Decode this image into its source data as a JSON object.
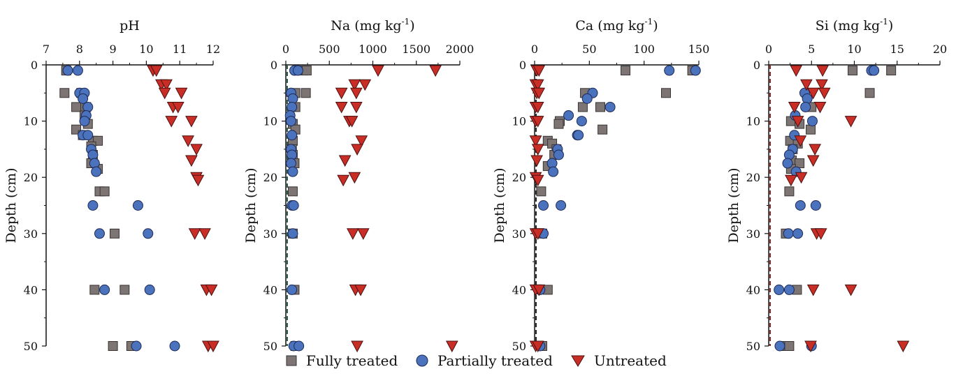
{
  "chart_data": [
    {
      "type": "scatter",
      "title": "pH",
      "ylabel": "Depth (cm)",
      "xlim": [
        7,
        12
      ],
      "xticks": [
        7,
        8,
        9,
        10,
        11,
        12
      ],
      "ylim": [
        0,
        50
      ],
      "yticks": [
        0,
        10,
        20,
        30,
        40,
        50
      ],
      "reference_line": null,
      "series": [
        {
          "name": "Fully treated",
          "points": [
            [
              7.6,
              1
            ],
            [
              7.55,
              5
            ],
            [
              8.05,
              5
            ],
            [
              7.9,
              7.5
            ],
            [
              8.2,
              7.5
            ],
            [
              8.15,
              9
            ],
            [
              8.25,
              10.5
            ],
            [
              7.9,
              11.5
            ],
            [
              8.1,
              12.5
            ],
            [
              8.4,
              13.5
            ],
            [
              8.55,
              13.5
            ],
            [
              8.35,
              14.5
            ],
            [
              8.4,
              16
            ],
            [
              8.35,
              17.5
            ],
            [
              8.55,
              18.5
            ],
            [
              8.6,
              22.5
            ],
            [
              8.75,
              22.5
            ],
            [
              9.05,
              30
            ],
            [
              8.45,
              40
            ],
            [
              9.35,
              40
            ],
            [
              9.0,
              50
            ],
            [
              9.55,
              50
            ]
          ]
        },
        {
          "name": "Partially treated",
          "points": [
            [
              7.65,
              1
            ],
            [
              7.95,
              1
            ],
            [
              8.0,
              5
            ],
            [
              8.15,
              5
            ],
            [
              8.1,
              6
            ],
            [
              8.25,
              7.5
            ],
            [
              8.2,
              9
            ],
            [
              8.15,
              10
            ],
            [
              8.1,
              12.5
            ],
            [
              8.25,
              12.5
            ],
            [
              8.35,
              15
            ],
            [
              8.4,
              16
            ],
            [
              8.45,
              17.5
            ],
            [
              8.5,
              19
            ],
            [
              8.4,
              25
            ],
            [
              9.75,
              25
            ],
            [
              8.6,
              30
            ],
            [
              10.05,
              30
            ],
            [
              8.75,
              40
            ],
            [
              10.1,
              40
            ],
            [
              9.7,
              50
            ],
            [
              10.85,
              50
            ]
          ]
        },
        {
          "name": "Untreated",
          "points": [
            [
              10.2,
              1
            ],
            [
              10.3,
              1
            ],
            [
              10.45,
              3.5
            ],
            [
              10.6,
              3.5
            ],
            [
              10.55,
              5
            ],
            [
              11.05,
              5
            ],
            [
              10.8,
              7.5
            ],
            [
              10.95,
              7.5
            ],
            [
              10.75,
              10
            ],
            [
              11.35,
              10
            ],
            [
              11.25,
              13.5
            ],
            [
              11.5,
              15
            ],
            [
              11.35,
              17
            ],
            [
              11.5,
              20
            ],
            [
              11.55,
              20.5
            ],
            [
              11.45,
              30
            ],
            [
              11.75,
              30
            ],
            [
              11.8,
              40
            ],
            [
              11.95,
              40
            ],
            [
              11.85,
              50
            ],
            [
              12.0,
              50
            ]
          ]
        }
      ]
    },
    {
      "type": "scatter",
      "title": "Na (mg kg",
      "title_sup": "-1",
      "title_end": ")",
      "ylabel": "Depth (cm)",
      "xlim": [
        0,
        2000
      ],
      "xticks": [
        0,
        500,
        1000,
        1500,
        2000
      ],
      "ylim": [
        0,
        50
      ],
      "yticks": [
        0,
        10,
        20,
        30,
        40,
        50
      ],
      "reference_line": {
        "x": 0,
        "color": "#2e5e4e"
      },
      "series": [
        {
          "name": "Fully treated",
          "points": [
            [
              200,
              1
            ],
            [
              240,
              1
            ],
            [
              110,
              5
            ],
            [
              230,
              5
            ],
            [
              110,
              7.5
            ],
            [
              80,
              10.5
            ],
            [
              110,
              11.5
            ],
            [
              80,
              13.5
            ],
            [
              70,
              15
            ],
            [
              80,
              16
            ],
            [
              100,
              17.5
            ],
            [
              80,
              22.5
            ],
            [
              80,
              30
            ],
            [
              100,
              40
            ],
            [
              110,
              50
            ]
          ]
        },
        {
          "name": "Partially treated",
          "points": [
            [
              100,
              1
            ],
            [
              140,
              1
            ],
            [
              60,
              5
            ],
            [
              80,
              6
            ],
            [
              70,
              7.5
            ],
            [
              50,
              9
            ],
            [
              60,
              10
            ],
            [
              70,
              12.5
            ],
            [
              60,
              15
            ],
            [
              70,
              16
            ],
            [
              60,
              17.5
            ],
            [
              80,
              19
            ],
            [
              70,
              25
            ],
            [
              90,
              25
            ],
            [
              80,
              30
            ],
            [
              70,
              40
            ],
            [
              90,
              50
            ],
            [
              150,
              50
            ]
          ]
        },
        {
          "name": "Untreated",
          "points": [
            [
              1060,
              1
            ],
            [
              1720,
              1
            ],
            [
              790,
              3.5
            ],
            [
              910,
              3.5
            ],
            [
              640,
              5
            ],
            [
              810,
              5
            ],
            [
              640,
              7.5
            ],
            [
              810,
              7.5
            ],
            [
              730,
              10
            ],
            [
              760,
              10
            ],
            [
              870,
              13.5
            ],
            [
              820,
              15
            ],
            [
              680,
              17
            ],
            [
              790,
              20
            ],
            [
              660,
              20.5
            ],
            [
              770,
              30
            ],
            [
              890,
              30
            ],
            [
              800,
              40
            ],
            [
              860,
              40
            ],
            [
              820,
              50
            ],
            [
              1910,
              50
            ]
          ]
        }
      ]
    },
    {
      "type": "scatter",
      "title": "Ca (mg kg",
      "title_sup": "-1",
      "title_end": ")",
      "ylabel": "Depth (cm)",
      "xlim": [
        0,
        150
      ],
      "xticks": [
        0,
        50,
        100,
        150
      ],
      "ylim": [
        0,
        50
      ],
      "yticks": [
        0,
        10,
        20,
        30,
        40,
        50
      ],
      "reference_line": {
        "x": 0,
        "color": "#222222"
      },
      "series": [
        {
          "name": "Fully treated",
          "points": [
            [
              83,
              1
            ],
            [
              144,
              1
            ],
            [
              120,
              5
            ],
            [
              46,
              5
            ],
            [
              60,
              7.5
            ],
            [
              44,
              7.5
            ],
            [
              23,
              10
            ],
            [
              22,
              10.5
            ],
            [
              62,
              11.5
            ],
            [
              12,
              13.5
            ],
            [
              16,
              14
            ],
            [
              20,
              15
            ],
            [
              18,
              16
            ],
            [
              12,
              18
            ],
            [
              6,
              22.5
            ],
            [
              7,
              30
            ],
            [
              12,
              40
            ],
            [
              7,
              50
            ]
          ]
        },
        {
          "name": "Partially treated",
          "points": [
            [
              123,
              1
            ],
            [
              147,
              1
            ],
            [
              53,
              5
            ],
            [
              48,
              6
            ],
            [
              69,
              7.5
            ],
            [
              31,
              9
            ],
            [
              43,
              10
            ],
            [
              39,
              12.5
            ],
            [
              40,
              12.5
            ],
            [
              21,
              15
            ],
            [
              22,
              16
            ],
            [
              16,
              17.5
            ],
            [
              17,
              19
            ],
            [
              8,
              25
            ],
            [
              24,
              25
            ],
            [
              8,
              30
            ],
            [
              5,
              40
            ],
            [
              5,
              50
            ]
          ]
        },
        {
          "name": "Untreated",
          "points": [
            [
              2,
              1
            ],
            [
              4,
              1
            ],
            [
              1,
              3.5
            ],
            [
              3,
              3.5
            ],
            [
              2,
              5
            ],
            [
              4,
              5
            ],
            [
              1,
              7.5
            ],
            [
              3,
              7.5
            ],
            [
              1,
              10
            ],
            [
              3,
              10
            ],
            [
              1,
              13.5
            ],
            [
              3,
              15
            ],
            [
              2,
              17
            ],
            [
              1,
              20
            ],
            [
              3,
              20.5
            ],
            [
              1,
              30
            ],
            [
              3,
              30
            ],
            [
              1,
              40
            ],
            [
              4,
              40
            ],
            [
              1,
              50
            ],
            [
              3,
              50
            ]
          ]
        }
      ]
    },
    {
      "type": "scatter",
      "title": "Si (mg kg",
      "title_sup": "-1",
      "title_end": ")",
      "ylabel": "Depth (cm)",
      "xlim": [
        0,
        20
      ],
      "xticks": [
        0,
        5,
        10,
        15,
        20
      ],
      "ylim": [
        0,
        50
      ],
      "yticks": [
        0,
        10,
        20,
        30,
        40,
        50
      ],
      "reference_line": {
        "x": 0,
        "color": "#8b2a2a"
      },
      "series": [
        {
          "name": "Fully treated",
          "points": [
            [
              9.8,
              1
            ],
            [
              14.3,
              1
            ],
            [
              11.8,
              5
            ],
            [
              5.0,
              7.5
            ],
            [
              2.6,
              10
            ],
            [
              3.6,
              10.5
            ],
            [
              4.9,
              11.5
            ],
            [
              2.5,
              13.5
            ],
            [
              3.4,
              14
            ],
            [
              2.8,
              15
            ],
            [
              2.7,
              17
            ],
            [
              3.6,
              17.5
            ],
            [
              2.6,
              18.5
            ],
            [
              2.4,
              22.5
            ],
            [
              2.0,
              30
            ],
            [
              3.3,
              40
            ],
            [
              2.1,
              50
            ],
            [
              2.4,
              50
            ]
          ]
        },
        {
          "name": "Partially treated",
          "points": [
            [
              12.0,
              1
            ],
            [
              12.3,
              1
            ],
            [
              4.2,
              5
            ],
            [
              4.5,
              6
            ],
            [
              4.3,
              7.5
            ],
            [
              3.1,
              9
            ],
            [
              5.1,
              10
            ],
            [
              3.0,
              12.5
            ],
            [
              2.8,
              15
            ],
            [
              2.4,
              16
            ],
            [
              2.2,
              17.5
            ],
            [
              3.2,
              19
            ],
            [
              3.7,
              25
            ],
            [
              5.5,
              25
            ],
            [
              2.3,
              30
            ],
            [
              3.4,
              30
            ],
            [
              1.2,
              40
            ],
            [
              2.4,
              40
            ],
            [
              1.3,
              50
            ],
            [
              5.0,
              50
            ]
          ]
        },
        {
          "name": "Untreated",
          "points": [
            [
              3.2,
              1
            ],
            [
              6.3,
              1
            ],
            [
              4.4,
              3.5
            ],
            [
              6.2,
              3.5
            ],
            [
              5.2,
              5
            ],
            [
              6.5,
              5
            ],
            [
              3.0,
              7.5
            ],
            [
              6.0,
              7.5
            ],
            [
              3.4,
              10
            ],
            [
              9.6,
              10
            ],
            [
              3.7,
              13.5
            ],
            [
              5.4,
              15
            ],
            [
              5.2,
              17
            ],
            [
              3.8,
              20
            ],
            [
              2.6,
              20.5
            ],
            [
              5.6,
              30
            ],
            [
              6.1,
              30
            ],
            [
              5.2,
              40
            ],
            [
              9.6,
              40
            ],
            [
              4.9,
              50
            ],
            [
              15.7,
              50
            ]
          ]
        }
      ]
    }
  ],
  "legend": {
    "items": [
      {
        "label": "Fully treated",
        "marker": "square",
        "color": "#7d7474"
      },
      {
        "label": "Partially treated",
        "marker": "circle",
        "color": "#4a72bd"
      },
      {
        "label": "Untreated",
        "marker": "triangle-down",
        "color": "#c92e26"
      }
    ]
  },
  "colors": {
    "fully_treated": "#7d7474",
    "partially_treated": "#4a72bd",
    "untreated": "#c92e26",
    "axis": "#111111"
  }
}
